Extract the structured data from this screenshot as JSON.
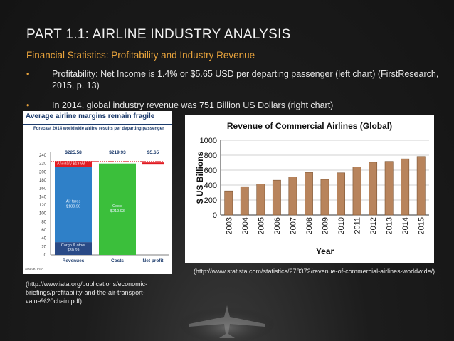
{
  "slide": {
    "title": "PART 1.1: AIRLINE INDUSTRY ANALYSIS",
    "subtitle": "Financial Statistics: Profitability and Industry Revenue",
    "bullets": [
      "Profitability: Net Income is 1.4% or $5.65 USD per departing passenger (left chart) (FirstResearch, 2015, p. 13)",
      "In 2014, global industry revenue was 751 Billion US Dollars (right chart)"
    ],
    "source_left": "(http://www.iata.org/publications/economic-briefings/profitability-and-the-air-transport-value%20chain.pdf)",
    "source_right": "(http://www.statista.com/statistics/278372/revenue-of-commercial-airlines-worldwide/)"
  },
  "colors": {
    "accent": "#e8a33c",
    "revenue_bar": "#b8845c",
    "fares": "#2f80c8",
    "costs": "#3bbf3b",
    "ancillary": "#e11b22",
    "cargo": "#2a4a86"
  },
  "chart_data": [
    {
      "type": "bar",
      "title": "Average airline margins remain fragile",
      "subtitle": "Forecast 2014 worldwide airline results per departing passenger",
      "categories": [
        "Revenues",
        "Costs",
        "Net profit"
      ],
      "value_labels": [
        "$225.58",
        "$219.93",
        "$5.65"
      ],
      "stacks": {
        "Revenues": [
          {
            "name": "Cargo & other",
            "value": 30.69,
            "label": "Cargo & other\n$30.69"
          },
          {
            "name": "Air fares",
            "value": 180.96,
            "label": "Air fares\n$180.96"
          },
          {
            "name": "Ancillary",
            "value": 13.93,
            "label": "Ancillary $13.93"
          }
        ],
        "Costs": [
          {
            "name": "Costs",
            "value": 219.93,
            "label": "Costs\n$219.93"
          }
        ],
        "Net profit": [
          {
            "name": "Net profit",
            "value": 5.65
          }
        ]
      },
      "yticks": [
        0,
        20,
        40,
        60,
        80,
        100,
        120,
        140,
        160,
        180,
        200,
        220,
        240
      ],
      "ylim": [
        0,
        240
      ],
      "source": "Source: IATA"
    },
    {
      "type": "bar",
      "title": "Revenue of Commercial Airlines (Global)",
      "xlabel": "Year",
      "ylabel": "$ US Billions",
      "categories": [
        "2003",
        "2004",
        "2005",
        "2006",
        "2007",
        "2008",
        "2009",
        "2010",
        "2011",
        "2012",
        "2013",
        "2014",
        "2015"
      ],
      "values": [
        322,
        379,
        413,
        465,
        510,
        570,
        476,
        564,
        642,
        706,
        717,
        751,
        783
      ],
      "ylim": [
        0,
        1000
      ],
      "yticks": [
        0,
        200,
        400,
        600,
        800,
        1000
      ],
      "grid": true
    }
  ]
}
